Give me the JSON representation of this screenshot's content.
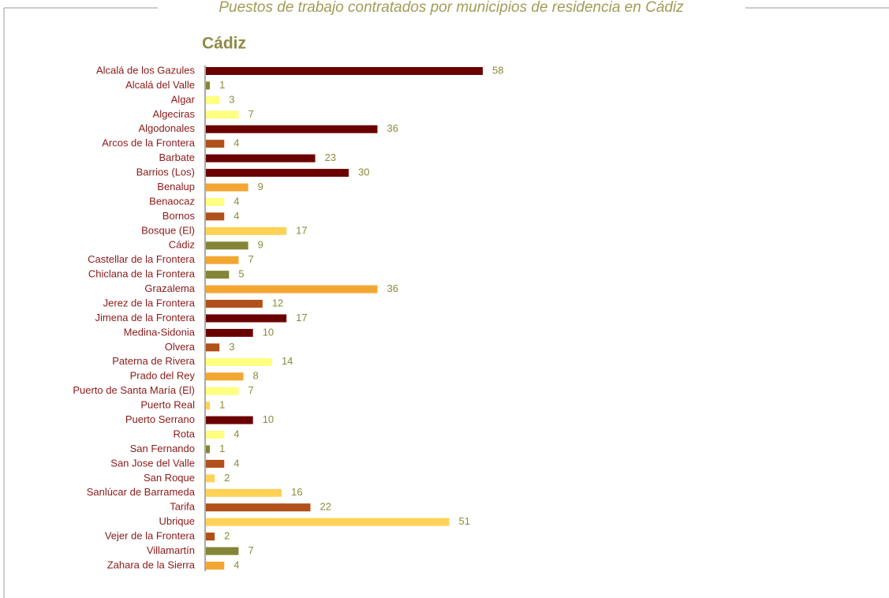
{
  "chart_data": {
    "type": "bar",
    "orientation": "horizontal",
    "title": "Puestos de trabajo contratados por municipios de residencia en Cádiz",
    "subtitle": "Cádiz",
    "categories": [
      "Alcalá de los Gazules",
      "Alcalá del Valle",
      "Algar",
      "Algeciras",
      "Algodonales",
      "Arcos de la Frontera",
      "Barbate",
      "Barrios (Los)",
      "Benalup",
      "Benaocaz",
      "Bornos",
      "Bosque (El)",
      "Cádiz",
      "Castellar de la Frontera",
      "Chiclana de la Frontera",
      "Grazalema",
      "Jerez de la Frontera",
      "Jimena de la Frontera",
      "Medina-Sidonia",
      "Olvera",
      "Paterna de Rivera",
      "Prado del Rey",
      "Puerto de Santa María (El)",
      "Puerto Real",
      "Puerto Serrano",
      "Rota",
      "San Fernando",
      "San Jose del Valle",
      "San Roque",
      "Sanlúcar de Barrameda",
      "Tarifa",
      "Ubrique",
      "Vejer de la Frontera",
      "Villamartín",
      "Zahara de la Sierra"
    ],
    "values": [
      58,
      1,
      3,
      7,
      36,
      4,
      23,
      30,
      9,
      4,
      4,
      17,
      9,
      7,
      5,
      36,
      12,
      17,
      10,
      3,
      14,
      8,
      7,
      1,
      10,
      4,
      1,
      4,
      2,
      16,
      22,
      51,
      2,
      7,
      4
    ],
    "colors": [
      "#6b0000",
      "#858537",
      "#ffff80",
      "#ffff80",
      "#6b0000",
      "#b0501a",
      "#6b0000",
      "#6b0000",
      "#f2a733",
      "#ffff80",
      "#b0501a",
      "#ffd257",
      "#858537",
      "#f2a733",
      "#858537",
      "#f2a733",
      "#b0501a",
      "#6b0000",
      "#6b0000",
      "#b0501a",
      "#ffff80",
      "#f2a733",
      "#ffff80",
      "#ffd257",
      "#6b0000",
      "#ffff80",
      "#858537",
      "#b0501a",
      "#ffd257",
      "#ffd257",
      "#b0501a",
      "#ffd257",
      "#b0501a",
      "#858537",
      "#f2a733"
    ]
  }
}
